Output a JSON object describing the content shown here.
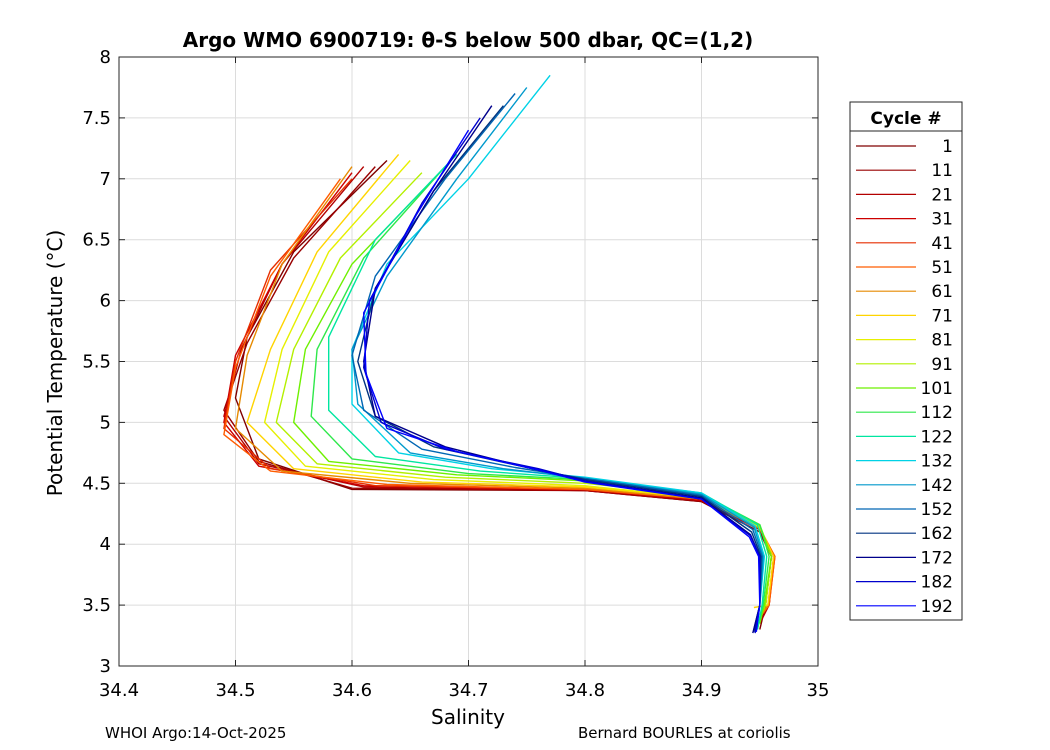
{
  "chart_data": {
    "type": "line",
    "title": "Argo WMO 6900719: θ-S below 500 dbar,  QC=(1,2)",
    "xlabel": "Salinity",
    "ylabel": "Potential Temperature (°C)",
    "xlim": [
      34.4,
      35
    ],
    "ylim": [
      3,
      8
    ],
    "xticks": [
      "34.4",
      "34.5",
      "34.6",
      "34.7",
      "34.8",
      "34.9",
      "35"
    ],
    "yticks": [
      "3",
      "3.5",
      "4",
      "4.5",
      "5",
      "5.5",
      "6",
      "6.5",
      "7",
      "7.5",
      "8"
    ],
    "grid": true,
    "legend": {
      "title": "Cycle #",
      "placement": "right-outside"
    },
    "series": [
      {
        "name": "1",
        "color": "#800000",
        "points": [
          [
            34.63,
            7.15
          ],
          [
            34.55,
            6.4
          ],
          [
            34.51,
            5.7
          ],
          [
            34.5,
            5.2
          ],
          [
            34.52,
            4.7
          ],
          [
            34.6,
            4.45
          ],
          [
            34.8,
            4.44
          ],
          [
            34.9,
            4.35
          ],
          [
            34.95,
            4.1
          ],
          [
            34.96,
            3.9
          ],
          [
            34.955,
            3.5
          ],
          [
            34.95,
            3.3
          ]
        ]
      },
      {
        "name": "11",
        "color": "#990000",
        "points": [
          [
            34.62,
            7.1
          ],
          [
            34.55,
            6.35
          ],
          [
            34.51,
            5.65
          ],
          [
            34.49,
            5.1
          ],
          [
            34.52,
            4.68
          ],
          [
            34.6,
            4.46
          ],
          [
            34.8,
            4.44
          ],
          [
            34.9,
            4.35
          ],
          [
            34.95,
            4.1
          ],
          [
            34.96,
            3.9
          ],
          [
            34.955,
            3.5
          ],
          [
            34.95,
            3.35
          ]
        ]
      },
      {
        "name": "21",
        "color": "#b30000",
        "points": [
          [
            34.61,
            7.1
          ],
          [
            34.54,
            6.3
          ],
          [
            34.505,
            5.6
          ],
          [
            34.49,
            5.05
          ],
          [
            34.52,
            4.66
          ],
          [
            34.61,
            4.47
          ],
          [
            34.8,
            4.44
          ],
          [
            34.9,
            4.36
          ],
          [
            34.95,
            4.12
          ],
          [
            34.962,
            3.9
          ],
          [
            34.958,
            3.5
          ],
          [
            34.95,
            3.35
          ]
        ]
      },
      {
        "name": "31",
        "color": "#cc0000",
        "points": [
          [
            34.6,
            7.05
          ],
          [
            34.54,
            6.3
          ],
          [
            34.5,
            5.55
          ],
          [
            34.49,
            5.0
          ],
          [
            34.52,
            4.64
          ],
          [
            34.61,
            4.48
          ],
          [
            34.8,
            4.45
          ],
          [
            34.9,
            4.36
          ],
          [
            34.95,
            4.12
          ],
          [
            34.962,
            3.9
          ],
          [
            34.958,
            3.5
          ],
          [
            34.95,
            3.4
          ]
        ]
      },
      {
        "name": "41",
        "color": "#e62e00",
        "points": [
          [
            34.6,
            7.0
          ],
          [
            34.53,
            6.25
          ],
          [
            34.5,
            5.5
          ],
          [
            34.49,
            4.95
          ],
          [
            34.53,
            4.62
          ],
          [
            34.62,
            4.48
          ],
          [
            34.8,
            4.45
          ],
          [
            34.9,
            4.37
          ],
          [
            34.95,
            4.13
          ],
          [
            34.963,
            3.9
          ],
          [
            34.958,
            3.5
          ],
          [
            34.95,
            3.4
          ]
        ]
      },
      {
        "name": "51",
        "color": "#ff5c00",
        "points": [
          [
            34.59,
            7.0
          ],
          [
            34.53,
            6.2
          ],
          [
            34.5,
            5.45
          ],
          [
            34.49,
            4.9
          ],
          [
            34.53,
            4.6
          ],
          [
            34.63,
            4.49
          ],
          [
            34.8,
            4.45
          ],
          [
            34.9,
            4.37
          ],
          [
            34.95,
            4.13
          ],
          [
            34.963,
            3.9
          ],
          [
            34.958,
            3.5
          ],
          [
            34.95,
            3.4
          ]
        ]
      },
      {
        "name": "61",
        "color": "#e68a00",
        "points": [
          [
            34.6,
            7.1
          ],
          [
            34.54,
            6.3
          ],
          [
            34.51,
            5.55
          ],
          [
            34.5,
            4.95
          ],
          [
            34.54,
            4.6
          ],
          [
            34.65,
            4.5
          ],
          [
            34.8,
            4.46
          ],
          [
            34.9,
            4.37
          ],
          [
            34.95,
            4.13
          ],
          [
            34.962,
            3.9
          ],
          [
            34.957,
            3.5
          ],
          [
            34.95,
            3.4
          ]
        ]
      },
      {
        "name": "71",
        "color": "#ffd400",
        "points": [
          [
            34.64,
            7.2
          ],
          [
            34.57,
            6.4
          ],
          [
            34.53,
            5.6
          ],
          [
            34.51,
            5.0
          ],
          [
            34.55,
            4.62
          ],
          [
            34.66,
            4.51
          ],
          [
            34.8,
            4.47
          ],
          [
            34.9,
            4.38
          ],
          [
            34.95,
            4.14
          ],
          [
            34.962,
            3.9
          ],
          [
            34.957,
            3.5
          ],
          [
            34.945,
            3.48
          ]
        ]
      },
      {
        "name": "81",
        "color": "#e6f000",
        "points": [
          [
            34.65,
            7.15
          ],
          [
            34.58,
            6.4
          ],
          [
            34.54,
            5.6
          ],
          [
            34.525,
            5.0
          ],
          [
            34.56,
            4.64
          ],
          [
            34.67,
            4.53
          ],
          [
            34.8,
            4.48
          ],
          [
            34.9,
            4.38
          ],
          [
            34.95,
            4.14
          ],
          [
            34.96,
            3.9
          ],
          [
            34.955,
            3.5
          ],
          [
            34.95,
            3.4
          ]
        ]
      },
      {
        "name": "91",
        "color": "#b4f000",
        "points": [
          [
            34.66,
            7.05
          ],
          [
            34.59,
            6.35
          ],
          [
            34.55,
            5.6
          ],
          [
            34.535,
            5.0
          ],
          [
            34.57,
            4.66
          ],
          [
            34.68,
            4.55
          ],
          [
            34.8,
            4.5
          ],
          [
            34.9,
            4.4
          ],
          [
            34.95,
            4.15
          ],
          [
            34.96,
            3.9
          ],
          [
            34.955,
            3.5
          ],
          [
            34.95,
            3.4
          ]
        ]
      },
      {
        "name": "101",
        "color": "#6ef000",
        "points": [
          [
            34.67,
            7.0
          ],
          [
            34.6,
            6.3
          ],
          [
            34.56,
            5.6
          ],
          [
            34.55,
            5.0
          ],
          [
            34.58,
            4.68
          ],
          [
            34.69,
            4.57
          ],
          [
            34.8,
            4.52
          ],
          [
            34.9,
            4.41
          ],
          [
            34.95,
            4.16
          ],
          [
            34.96,
            3.9
          ],
          [
            34.954,
            3.5
          ],
          [
            34.95,
            3.35
          ]
        ]
      },
      {
        "name": "112",
        "color": "#2ee84a",
        "points": [
          [
            34.68,
            7.1
          ],
          [
            34.61,
            6.35
          ],
          [
            34.57,
            5.6
          ],
          [
            34.565,
            5.05
          ],
          [
            34.6,
            4.7
          ],
          [
            34.7,
            4.58
          ],
          [
            34.8,
            4.53
          ],
          [
            34.9,
            4.41
          ],
          [
            34.95,
            4.16
          ],
          [
            34.958,
            3.9
          ],
          [
            34.953,
            3.5
          ],
          [
            34.948,
            3.3
          ]
        ]
      },
      {
        "name": "122",
        "color": "#00e6a0",
        "points": [
          [
            34.69,
            7.2
          ],
          [
            34.62,
            6.5
          ],
          [
            34.58,
            5.7
          ],
          [
            34.58,
            5.1
          ],
          [
            34.62,
            4.72
          ],
          [
            34.71,
            4.6
          ],
          [
            34.8,
            4.54
          ],
          [
            34.9,
            4.42
          ],
          [
            34.948,
            4.16
          ],
          [
            34.956,
            3.9
          ],
          [
            34.952,
            3.5
          ],
          [
            34.948,
            3.3
          ]
        ]
      },
      {
        "name": "132",
        "color": "#00d2e6",
        "points": [
          [
            34.77,
            7.85
          ],
          [
            34.7,
            7.0
          ],
          [
            34.63,
            6.3
          ],
          [
            34.6,
            5.6
          ],
          [
            34.6,
            5.15
          ],
          [
            34.64,
            4.75
          ],
          [
            34.72,
            4.62
          ],
          [
            34.8,
            4.55
          ],
          [
            34.9,
            4.42
          ],
          [
            34.946,
            4.15
          ],
          [
            34.954,
            3.9
          ],
          [
            34.95,
            3.5
          ],
          [
            34.947,
            3.3
          ]
        ]
      },
      {
        "name": "142",
        "color": "#0099cc",
        "points": [
          [
            34.75,
            7.75
          ],
          [
            34.69,
            7.0
          ],
          [
            34.63,
            6.2
          ],
          [
            34.6,
            5.6
          ],
          [
            34.605,
            5.15
          ],
          [
            34.65,
            4.75
          ],
          [
            34.73,
            4.62
          ],
          [
            34.8,
            4.54
          ],
          [
            34.9,
            4.41
          ],
          [
            34.945,
            4.14
          ],
          [
            34.953,
            3.9
          ],
          [
            34.95,
            3.5
          ],
          [
            34.946,
            3.3
          ]
        ]
      },
      {
        "name": "152",
        "color": "#0066b3",
        "points": [
          [
            34.74,
            7.7
          ],
          [
            34.68,
            7.0
          ],
          [
            34.62,
            6.2
          ],
          [
            34.6,
            5.55
          ],
          [
            34.61,
            5.1
          ],
          [
            34.66,
            4.78
          ],
          [
            34.74,
            4.63
          ],
          [
            34.8,
            4.54
          ],
          [
            34.9,
            4.4
          ],
          [
            34.944,
            4.12
          ],
          [
            34.952,
            3.9
          ],
          [
            34.95,
            3.5
          ],
          [
            34.945,
            3.3
          ]
        ]
      },
      {
        "name": "162",
        "color": "#003380",
        "points": [
          [
            34.73,
            7.6
          ],
          [
            34.67,
            6.9
          ],
          [
            34.62,
            6.1
          ],
          [
            34.605,
            5.5
          ],
          [
            34.62,
            5.05
          ],
          [
            34.67,
            4.8
          ],
          [
            34.75,
            4.63
          ],
          [
            34.8,
            4.53
          ],
          [
            34.9,
            4.39
          ],
          [
            34.943,
            4.1
          ],
          [
            34.951,
            3.9
          ],
          [
            34.95,
            3.5
          ],
          [
            34.945,
            3.28
          ]
        ]
      },
      {
        "name": "172",
        "color": "#00008b",
        "points": [
          [
            34.72,
            7.6
          ],
          [
            34.67,
            6.9
          ],
          [
            34.62,
            6.1
          ],
          [
            34.61,
            5.5
          ],
          [
            34.62,
            5.05
          ],
          [
            34.68,
            4.8
          ],
          [
            34.75,
            4.63
          ],
          [
            34.8,
            4.52
          ],
          [
            34.9,
            4.38
          ],
          [
            34.942,
            4.08
          ],
          [
            34.95,
            3.9
          ],
          [
            34.95,
            3.5
          ],
          [
            34.944,
            3.27
          ]
        ]
      },
      {
        "name": "182",
        "color": "#0000cc",
        "points": [
          [
            34.71,
            7.5
          ],
          [
            34.66,
            6.8
          ],
          [
            34.615,
            6.0
          ],
          [
            34.61,
            5.45
          ],
          [
            34.625,
            5.0
          ],
          [
            34.68,
            4.78
          ],
          [
            34.76,
            4.62
          ],
          [
            34.8,
            4.52
          ],
          [
            34.9,
            4.37
          ],
          [
            34.942,
            4.07
          ],
          [
            34.95,
            3.9
          ],
          [
            34.95,
            3.5
          ],
          [
            34.946,
            3.27
          ]
        ]
      },
      {
        "name": "192",
        "color": "#0000ff",
        "points": [
          [
            34.7,
            7.4
          ],
          [
            34.655,
            6.7
          ],
          [
            34.61,
            5.9
          ],
          [
            34.612,
            5.4
          ],
          [
            34.63,
            4.95
          ],
          [
            34.69,
            4.76
          ],
          [
            34.76,
            4.61
          ],
          [
            34.8,
            4.51
          ],
          [
            34.9,
            4.37
          ],
          [
            34.941,
            4.06
          ],
          [
            34.949,
            3.9
          ],
          [
            34.95,
            3.5
          ],
          [
            34.947,
            3.28
          ]
        ]
      }
    ]
  },
  "footer": {
    "left": "WHOI Argo:14-Oct-2025",
    "right": "Bernard BOURLES at coriolis"
  }
}
